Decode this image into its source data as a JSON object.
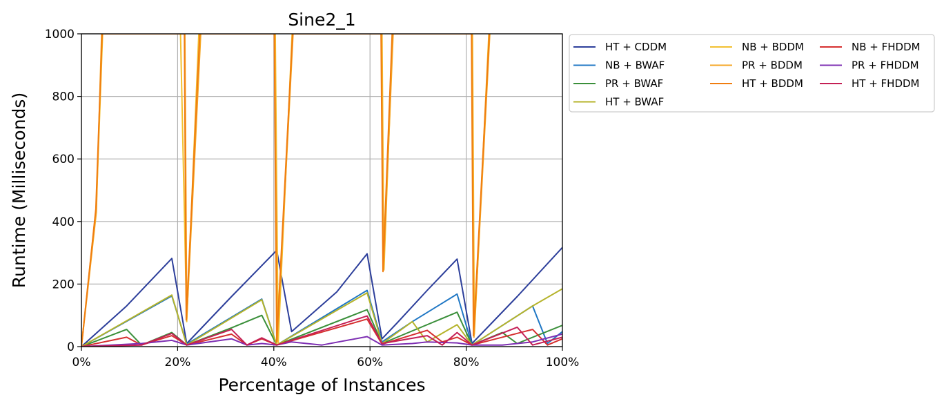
{
  "chart_data": {
    "type": "line",
    "title": "Sine2_1",
    "xlabel": "Percentage of Instances",
    "ylabel": "Runtime (Milliseconds)",
    "xlim": [
      0,
      100
    ],
    "ylim": [
      0,
      1000
    ],
    "xticks": [
      0,
      20,
      40,
      60,
      80,
      100
    ],
    "xtick_labels": [
      "0%",
      "20%",
      "40%",
      "60%",
      "80%",
      "100%"
    ],
    "yticks": [
      0,
      200,
      400,
      600,
      800,
      1000
    ],
    "ytick_labels": [
      "0",
      "200",
      "400",
      "600",
      "800",
      "1000"
    ],
    "grid": true,
    "legend": {
      "placement": "outside-top-right",
      "columns": 3
    },
    "series": [
      {
        "name": "HT + CDDM",
        "color": "#2c3e9a",
        "x": [
          0,
          9.4,
          18.8,
          21.9,
          31.2,
          40.6,
          43.7,
          53.1,
          59.4,
          62.5,
          65.6,
          71.9,
          78.1,
          81.2,
          90.6,
          100
        ],
        "y": [
          0,
          130,
          282,
          10,
          160,
          308,
          48,
          175,
          297,
          25,
          75,
          180,
          280,
          10,
          160,
          317
        ]
      },
      {
        "name": "NB + BWAF",
        "color": "#1f77c4",
        "x": [
          0,
          18.8,
          21.9,
          37.5,
          40.6,
          59.4,
          62.5,
          68.8,
          78.1,
          81.2,
          93.8,
          96.9,
          100
        ],
        "y": [
          0,
          162,
          8,
          152,
          5,
          180,
          15,
          80,
          168,
          5,
          130,
          10,
          48
        ]
      },
      {
        "name": "PR + BWAF",
        "color": "#3a8f3a",
        "x": [
          0,
          9.4,
          12.5,
          18.8,
          21.9,
          31.2,
          37.5,
          40.6,
          59.4,
          62.5,
          78.1,
          81.2,
          87.5,
          90.6,
          100
        ],
        "y": [
          0,
          55,
          5,
          45,
          5,
          60,
          100,
          5,
          118,
          10,
          110,
          5,
          45,
          10,
          68
        ]
      },
      {
        "name": "HT + BWAF",
        "color": "#b5b32a",
        "x": [
          0,
          18.8,
          21.9,
          37.5,
          40.6,
          59.4,
          62.5,
          68.8,
          71.9,
          78.1,
          81.2,
          93.8,
          100
        ],
        "y": [
          0,
          165,
          5,
          150,
          5,
          172,
          10,
          80,
          15,
          70,
          5,
          130,
          185
        ]
      },
      {
        "name": "NB + BDDM",
        "color": "#f2c030",
        "x": [
          0,
          3.1,
          4.4,
          20.6,
          21.9,
          24.4,
          40.3,
          40.9,
          43.8,
          62.5,
          62.9,
          64.7,
          81.3,
          81.7,
          84.7
        ],
        "y": [
          0,
          450,
          1000,
          1000,
          80,
          1000,
          1000,
          10,
          1000,
          1000,
          245,
          1000,
          1000,
          40,
          1000
        ]
      },
      {
        "name": "PR + BDDM",
        "color": "#f5a623",
        "x": [
          0,
          3.1,
          4.2,
          21.5,
          21.9,
          24.8,
          40.2,
          40.7,
          44.0,
          62.4,
          62.8,
          64.8,
          81.2,
          81.6,
          84.9
        ],
        "y": [
          0,
          430,
          1000,
          1000,
          90,
          1000,
          1000,
          20,
          1000,
          1000,
          250,
          1000,
          1000,
          30,
          1000
        ]
      },
      {
        "name": "HT + BDDM",
        "color": "#f07d10",
        "x": [
          0,
          3.0,
          4.3,
          21.4,
          21.8,
          24.6,
          40.1,
          40.6,
          43.9,
          62.3,
          62.7,
          64.6,
          81.1,
          81.5,
          84.8
        ],
        "y": [
          0,
          440,
          1000,
          1000,
          85,
          1000,
          1000,
          15,
          1000,
          1000,
          240,
          1000,
          1000,
          35,
          1000
        ]
      },
      {
        "name": "NB + FHDDM",
        "color": "#d62f2f",
        "x": [
          0,
          9.4,
          12.5,
          18.8,
          21.9,
          31.2,
          34.4,
          37.5,
          40.6,
          59.4,
          62.5,
          71.9,
          75.0,
          78.1,
          81.2,
          93.8,
          96.9,
          100
        ],
        "y": [
          0,
          30,
          5,
          35,
          5,
          40,
          5,
          25,
          5,
          88,
          8,
          52,
          15,
          30,
          5,
          55,
          5,
          25
        ]
      },
      {
        "name": "PR + FHDDM",
        "color": "#7e2fb3",
        "x": [
          0,
          12.5,
          18.8,
          21.9,
          31.2,
          34.4,
          37.5,
          40.6,
          43.7,
          50.0,
          59.4,
          62.5,
          68.8,
          71.9,
          78.1,
          81.2,
          87.5,
          93.8,
          100
        ],
        "y": [
          0,
          10,
          20,
          5,
          25,
          5,
          10,
          5,
          15,
          5,
          32,
          5,
          10,
          15,
          12,
          5,
          5,
          15,
          40
        ]
      },
      {
        "name": "HT + FHDDM",
        "color": "#c41f55",
        "x": [
          0,
          12.5,
          18.8,
          21.9,
          31.2,
          34.4,
          37.5,
          40.6,
          59.4,
          62.5,
          71.9,
          75.0,
          78.1,
          81.2,
          90.6,
          93.8,
          100
        ],
        "y": [
          0,
          5,
          42,
          5,
          55,
          5,
          28,
          5,
          98,
          10,
          35,
          5,
          45,
          5,
          62,
          5,
          30
        ]
      }
    ]
  }
}
